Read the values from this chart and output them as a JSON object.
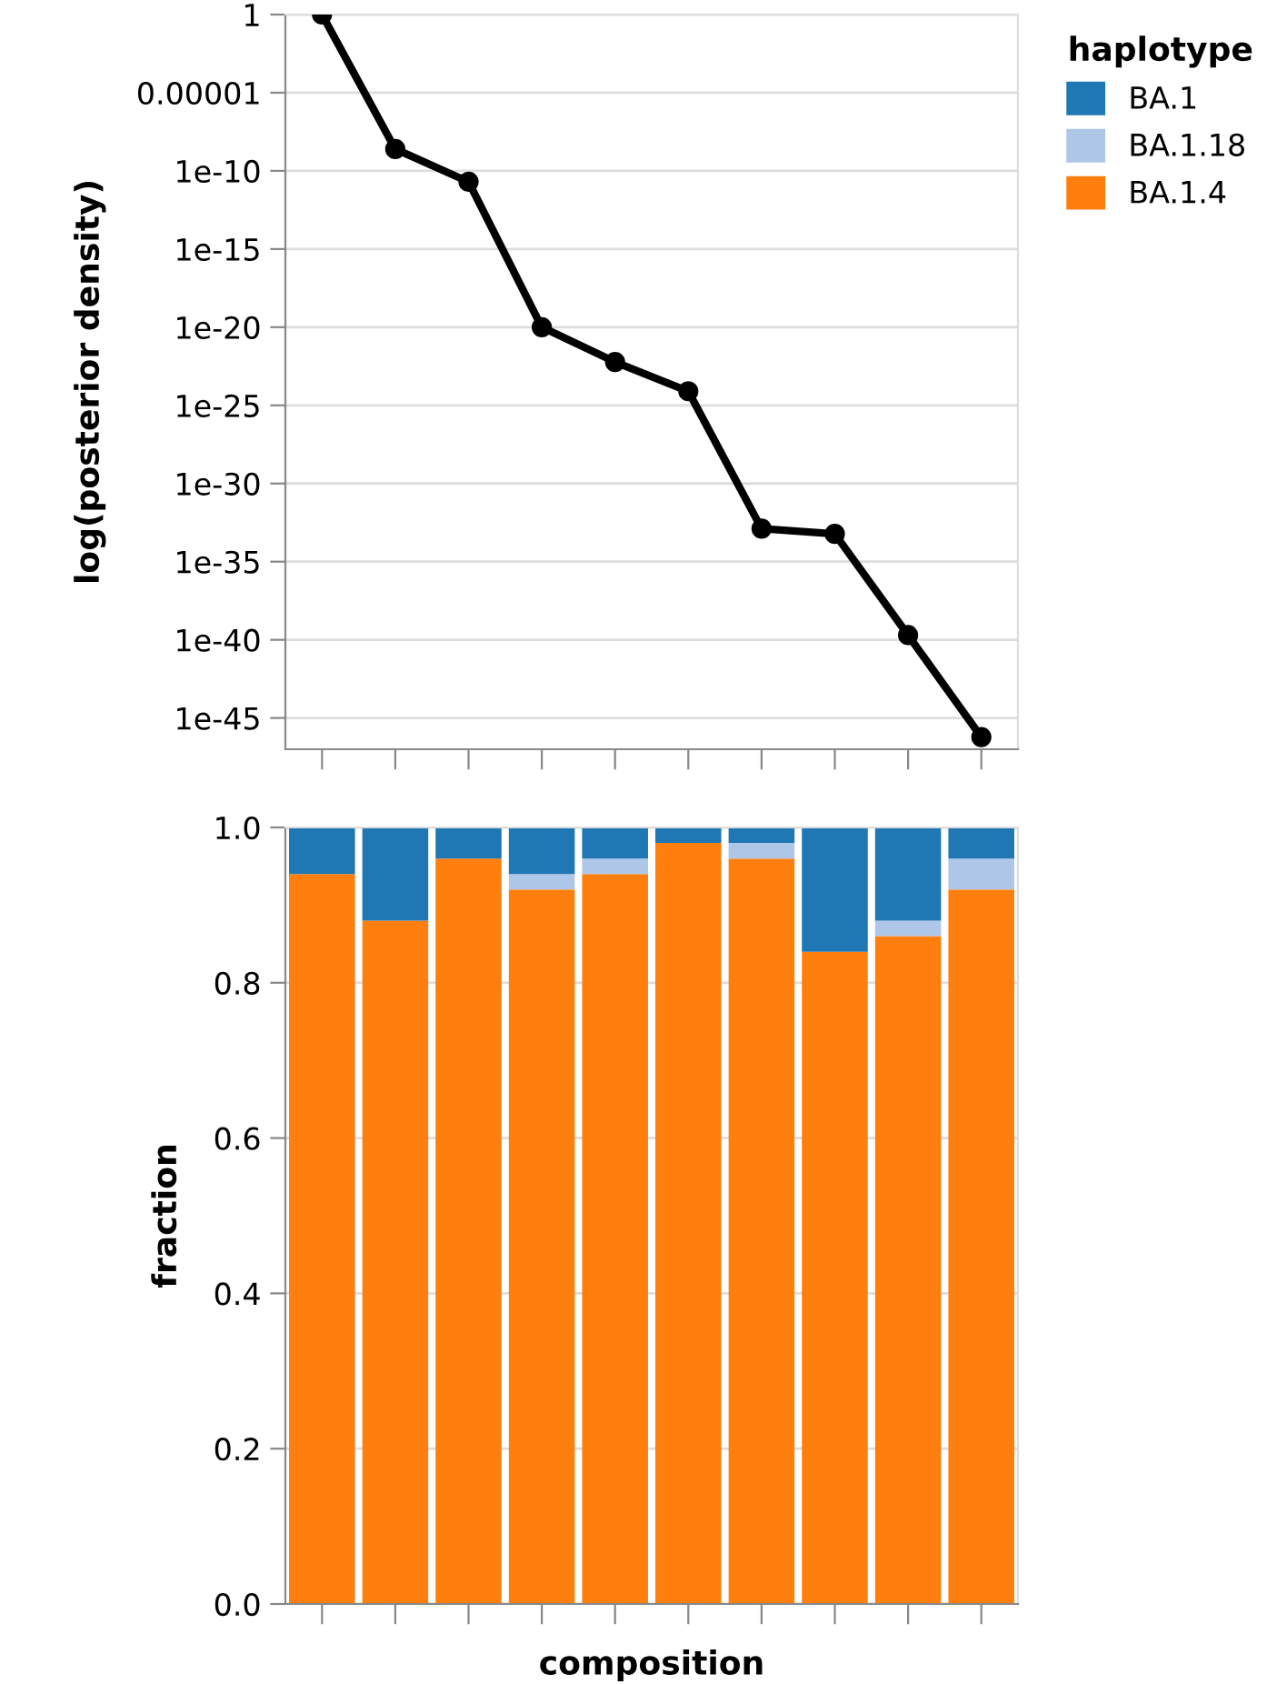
{
  "chart_data": [
    {
      "type": "line",
      "ylabel": "log(posterior density)",
      "categories": [
        null,
        null,
        null,
        null,
        null,
        null,
        null,
        null,
        null,
        null
      ],
      "series": [
        {
          "color": "#000000",
          "values": [
            1,
            2.5e-09,
            2e-11,
            1e-20,
            6e-23,
            8e-25,
            1.3e-33,
            6e-34,
            2e-40,
            6e-47
          ]
        }
      ],
      "log": "y",
      "ylim": [
        1e-47,
        1
      ],
      "yticks": [
        1,
        {
          "value": 1e-05,
          "label": "0.00001"
        },
        {
          "value": 1e-10,
          "label": "1e-10"
        },
        {
          "value": 1e-15,
          "label": "1e-15"
        },
        {
          "value": 1e-20,
          "label": "1e-20"
        },
        {
          "value": 1e-25,
          "label": "1e-25"
        },
        {
          "value": 1e-30,
          "label": "1e-30"
        },
        {
          "value": 1e-35,
          "label": "1e-35"
        },
        {
          "value": 1e-40,
          "label": "1e-40"
        },
        {
          "value": 1e-45,
          "label": "1e-45"
        }
      ],
      "grid": "y",
      "marker": "circle",
      "line_style": "solid",
      "tick_labels": "y"
    },
    {
      "type": "bar",
      "stacked": true,
      "xlabel": "composition",
      "ylabel": "fraction",
      "legend_title": "haplotype",
      "legend": "top right",
      "categories": [
        null,
        null,
        null,
        null,
        null,
        null,
        null,
        null,
        null,
        null
      ],
      "series": [
        {
          "name": "BA.1.4",
          "color": "#ff7f0e",
          "values": [
            0.94,
            0.88,
            0.96,
            0.92,
            0.94,
            0.98,
            0.96,
            0.84,
            0.86,
            0.92
          ]
        },
        {
          "name": "BA.1.18",
          "color": "#aec7e8",
          "values": [
            0,
            0,
            0,
            0.02,
            0.02,
            0,
            0.02,
            0,
            0.02,
            0.04
          ]
        },
        {
          "name": "BA.1",
          "color": "#1f77b4",
          "values": [
            0.06,
            0.12,
            0.04,
            0.06,
            0.04,
            0.02,
            0.02,
            0.16,
            0.12,
            0.04
          ]
        }
      ],
      "ylim": [
        0,
        1
      ],
      "yticks": [
        {
          "value": 0,
          "label": "0.0"
        },
        {
          "value": 0.2,
          "label": "0.2"
        },
        {
          "value": 0.4,
          "label": "0.4"
        },
        {
          "value": 0.6,
          "label": "0.6"
        },
        {
          "value": 0.8,
          "label": "0.8"
        },
        {
          "value": 1,
          "label": "1.0"
        }
      ],
      "grid": "y",
      "tick_labels": "y"
    }
  ]
}
